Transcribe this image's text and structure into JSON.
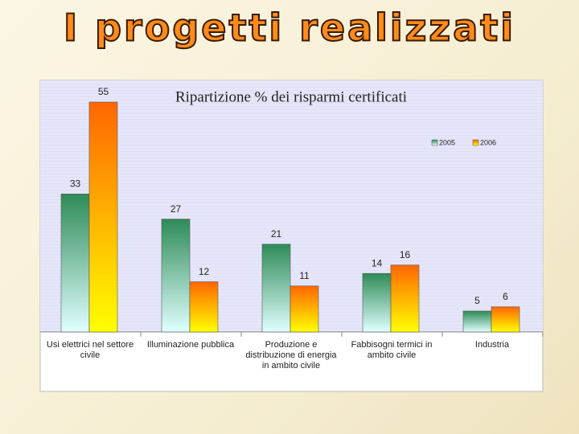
{
  "title": "I progetti realizzati",
  "chart_data": {
    "type": "bar",
    "title": "Ripartizione % dei risparmi certificati",
    "categories": [
      "Usi elettrici nel settore civile",
      "Illuminazione pubblica",
      "Produzione e distribuzione di energia in ambito civile",
      "Fabbisogni termici in ambito civile",
      "Industria"
    ],
    "series": [
      {
        "name": "2005",
        "color": "#2e8b57",
        "values": [
          33,
          27,
          21,
          14,
          5
        ]
      },
      {
        "name": "2006",
        "color": "#ff6600",
        "values": [
          55,
          12,
          11,
          16,
          6
        ]
      }
    ],
    "legend": "top-right"
  }
}
